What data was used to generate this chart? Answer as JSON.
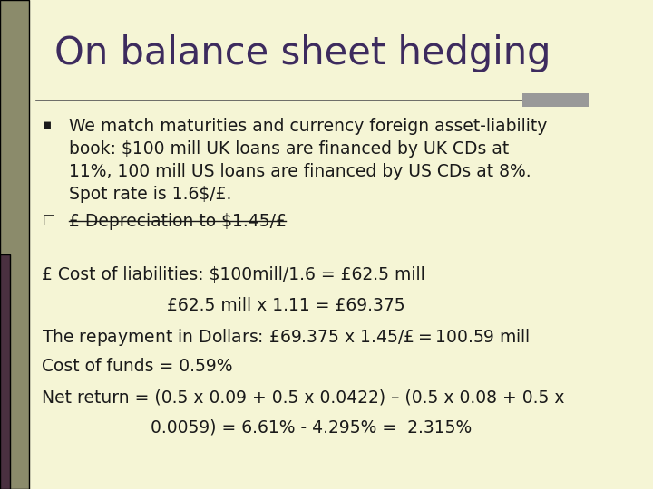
{
  "title": "On balance sheet hedging",
  "title_color": "#3d2b5e",
  "title_fontsize": 30,
  "bg_color": "#f5f5d5",
  "left_bar_color": "#8b8b6b",
  "left_bar_dark": "#4a3040",
  "top_rule_color": "#555555",
  "top_rule_right_box_color": "#999999",
  "bullet1": "We match maturities and currency foreign asset-liability\nbook: $100 mill UK loans are financed by UK CDs at\n11%, 100 mill US loans are financed by US CDs at 8%.\nSpot rate is 1.6$/£.",
  "bullet2": "£ Depreciation to $1.45/£",
  "line1": "£ Cost of liabilities: $100mill/1.6 = £62.5 mill",
  "line2": "                       £62.5 mill x 1.11 = £69.375",
  "line3": "The repayment in Dollars: £69.375 x $1.45/£ = $100.59 mill",
  "line4": "Cost of funds = 0.59%",
  "line5": "Net return = (0.5 x 0.09 + 0.5 x 0.0422) – (0.5 x 0.08 + 0.5 x",
  "line6": "                    0.0059) = 6.61% - 4.295% =  2.315%",
  "text_color": "#1a1a1a",
  "text_fontsize": 13.5,
  "underline_bullet2": true
}
